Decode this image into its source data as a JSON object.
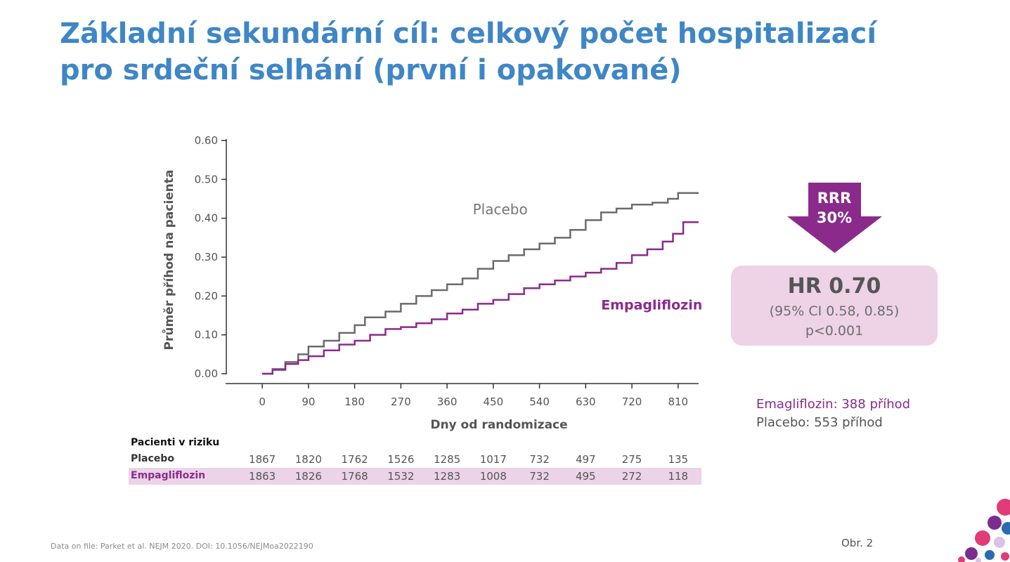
{
  "title": {
    "line1": "Základní sekundární cíl: celkový počet hospitalizací",
    "line2": "pro srdeční selhání (první i opakované)"
  },
  "chart_data": {
    "type": "line",
    "xlabel": "Dny od randomizace",
    "ylabel": "Průměr příhod na pacienta",
    "xticks": [
      0,
      90,
      180,
      270,
      360,
      450,
      540,
      630,
      720,
      810
    ],
    "yticks": [
      "0.00",
      "0.10",
      "0.20",
      "0.30",
      "0.40",
      "0.50",
      "0.60"
    ],
    "xlim": [
      -70,
      850
    ],
    "ylim": [
      0,
      0.6
    ],
    "grid": false,
    "series": [
      {
        "name": "Placebo",
        "color": "#6b6b6b",
        "x": [
          0,
          20,
          45,
          70,
          90,
          120,
          150,
          180,
          200,
          240,
          270,
          300,
          330,
          360,
          390,
          420,
          450,
          480,
          510,
          540,
          570,
          600,
          630,
          660,
          690,
          720,
          760,
          790,
          810,
          850
        ],
        "y": [
          0.0,
          0.012,
          0.03,
          0.05,
          0.07,
          0.085,
          0.105,
          0.125,
          0.145,
          0.16,
          0.18,
          0.2,
          0.215,
          0.23,
          0.245,
          0.27,
          0.29,
          0.305,
          0.32,
          0.335,
          0.35,
          0.37,
          0.395,
          0.415,
          0.425,
          0.435,
          0.44,
          0.45,
          0.465,
          0.465
        ]
      },
      {
        "name": "Empagliflozin",
        "color": "#8a2b8c",
        "x": [
          0,
          20,
          45,
          70,
          90,
          120,
          150,
          180,
          210,
          240,
          270,
          300,
          330,
          360,
          390,
          420,
          450,
          480,
          510,
          540,
          570,
          600,
          630,
          660,
          690,
          720,
          750,
          780,
          800,
          820,
          850
        ],
        "y": [
          0.0,
          0.01,
          0.025,
          0.035,
          0.045,
          0.06,
          0.075,
          0.085,
          0.1,
          0.115,
          0.12,
          0.13,
          0.14,
          0.155,
          0.165,
          0.18,
          0.19,
          0.205,
          0.22,
          0.23,
          0.24,
          0.25,
          0.26,
          0.27,
          0.285,
          0.305,
          0.32,
          0.34,
          0.36,
          0.39,
          0.39
        ]
      }
    ],
    "annotations": [
      {
        "text": "Placebo",
        "x": 410,
        "y": 0.41,
        "color": "#777777"
      },
      {
        "text": "Empagliflozin",
        "x": 660,
        "y": 0.165,
        "color": "#8a2b8c"
      }
    ]
  },
  "rrr": {
    "label": "RRR",
    "value": "30%",
    "color": "#8a2b8c"
  },
  "hr": {
    "main": "HR 0.70",
    "ci": "(95% CI 0.58, 0.85)",
    "p": "p<0.001"
  },
  "events": {
    "empagliflozin": "Emagliflozin: 388 příhod",
    "placebo": "Placebo: 553 příhod"
  },
  "risk_table": {
    "title": "Pacienti v riziku",
    "rows": [
      {
        "label": "Placebo",
        "values": [
          "1867",
          "1820",
          "1762",
          "1526",
          "1285",
          "1017",
          "732",
          "497",
          "275",
          "135"
        ]
      },
      {
        "label": "Empagliflozin",
        "values": [
          "1863",
          "1826",
          "1768",
          "1532",
          "1283",
          "1008",
          "732",
          "495",
          "272",
          "118"
        ]
      }
    ]
  },
  "footer": "Data on file: Parket et al. NEJM 2020. DOI: 10.1056/NEJMoa2022190",
  "figure_label": "Obr. 2",
  "colors": {
    "title": "#3f86c6",
    "accent": "#8a2b8c",
    "box": "#eed2e5"
  }
}
